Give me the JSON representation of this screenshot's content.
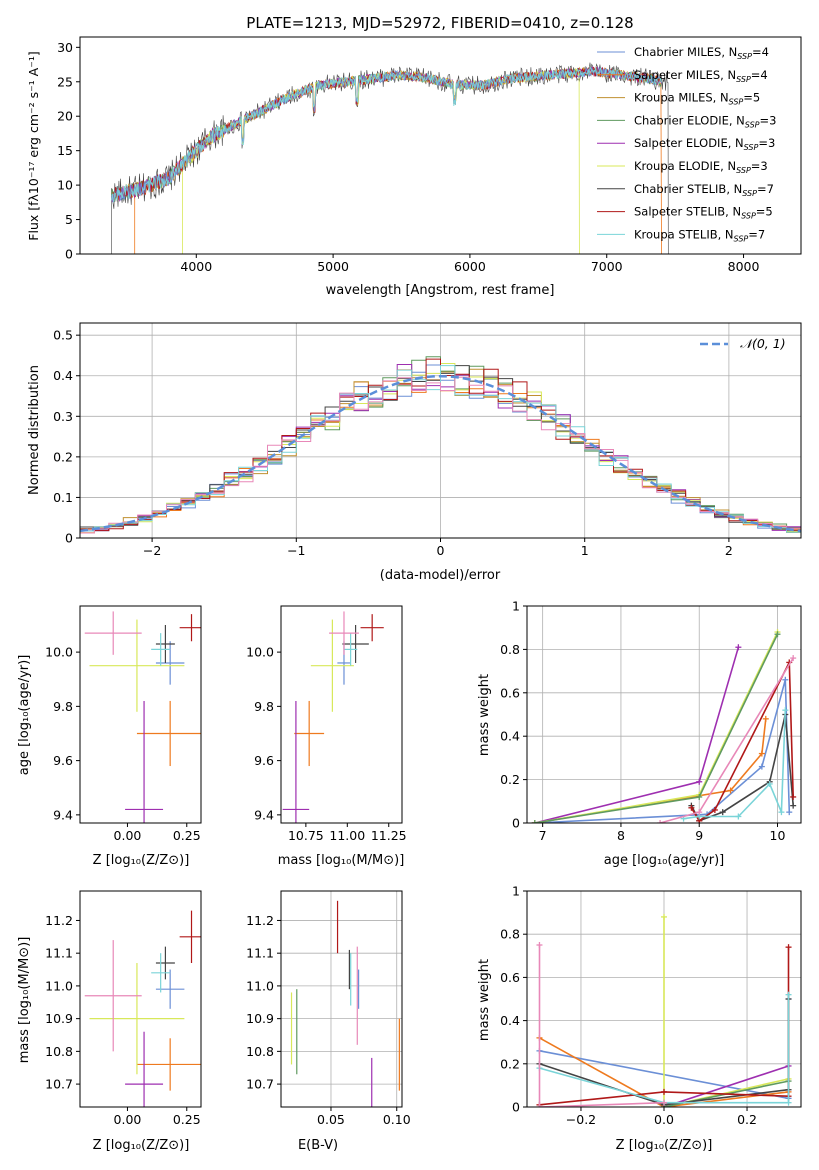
{
  "colors": {
    "Chabrier MILES": "#6b8fd6",
    "Salpeter MILES": "#ee7a1f",
    "Kroupa MILES": "#c09030",
    "Chabrier ELODIE": "#5f9a5f",
    "Salpeter ELODIE": "#9e2fb0",
    "Kroupa ELODIE": "#d8e85a",
    "Chabrier STELIB": "#444444",
    "Salpeter STELIB": "#b01818",
    "Kroupa STELIB": "#7ad4d8",
    "normal": "#5b8fd9",
    "pink": "#e888b8",
    "lime": "#9acd32"
  },
  "chart_data": [
    {
      "type": "line",
      "title": "PLATE=1213, MJD=52972, FIBERID=0410, z=0.128",
      "xlabel": "wavelength [Angstrom, rest frame]",
      "ylabel": "Flux [fλ10⁻¹⁷ erg cm⁻² s⁻¹ A⁻¹]",
      "xlim": [
        3150,
        8420
      ],
      "ylim": [
        0,
        31.5
      ],
      "xticks": [
        4000,
        5000,
        6000,
        7000,
        8000
      ],
      "yticks": [
        0,
        5,
        10,
        15,
        20,
        25,
        30
      ],
      "grid": false,
      "legend_position": "right",
      "legend": [
        "Chabrier MILES, N_SSP=4",
        "Salpeter MILES, N_SSP=4",
        "Kroupa MILES, N_SSP=5",
        "Chabrier ELODIE, N_SSP=3",
        "Salpeter ELODIE, N_SSP=3",
        "Kroupa ELODIE, N_SSP=3",
        "Chabrier STELIB, N_SSP=7",
        "Salpeter STELIB, N_SSP=5",
        "Kroupa STELIB, N_SSP=7"
      ],
      "legend_rendered": [
        {
          "name": "Chabrier MILES",
          "sub": "SSP",
          "n": "=4"
        },
        {
          "name": "Salpeter MILES",
          "sub": "SSP",
          "n": "=4"
        },
        {
          "name": "Kroupa MILES",
          "sub": "SSP",
          "n": "=5"
        },
        {
          "name": "Chabrier ELODIE",
          "sub": "SSP",
          "n": "=3"
        },
        {
          "name": "Salpeter ELODIE",
          "sub": "SSP",
          "n": "=3"
        },
        {
          "name": "Kroupa ELODIE",
          "sub": "SSP",
          "n": "=3"
        },
        {
          "name": "Chabrier STELIB",
          "sub": "SSP",
          "n": "=7"
        },
        {
          "name": "Salpeter STELIB",
          "sub": "SSP",
          "n": "=5"
        },
        {
          "name": "Kroupa STELIB",
          "sub": "SSP",
          "n": "=7"
        }
      ],
      "continuum": [
        [
          3380,
          8.5
        ],
        [
          3600,
          9.5
        ],
        [
          3800,
          11
        ],
        [
          3950,
          14
        ],
        [
          4100,
          17
        ],
        [
          4300,
          19
        ],
        [
          4500,
          21
        ],
        [
          4700,
          23
        ],
        [
          4900,
          24.5
        ],
        [
          5100,
          25
        ],
        [
          5300,
          25.5
        ],
        [
          5500,
          26
        ],
        [
          5700,
          25.5
        ],
        [
          5900,
          24.5
        ],
        [
          6100,
          24.5
        ],
        [
          6300,
          25.5
        ],
        [
          6600,
          26
        ],
        [
          6900,
          26.5
        ],
        [
          7100,
          26
        ],
        [
          7300,
          25.5
        ],
        [
          7400,
          25
        ]
      ],
      "model_ranges": {
        "Salpeter MILES": [
          3550,
          7400
        ],
        "Kroupa ELODIE": [
          3900,
          6800
        ],
        "Chabrier STELIB": [
          3380,
          7450
        ]
      }
    },
    {
      "type": "step",
      "xlabel": "(data-model)/error",
      "ylabel": "Normed distribution",
      "xlim": [
        -2.5,
        2.5
      ],
      "ylim": [
        0,
        0.53
      ],
      "xticks": [
        -2,
        -1,
        0,
        1,
        2
      ],
      "xtick_labels": [
        "−2",
        "−1",
        "0",
        "1",
        "2"
      ],
      "yticks": [
        0.0,
        0.1,
        0.2,
        0.3,
        0.4,
        0.5
      ],
      "grid": true,
      "legend_position": "top-right",
      "normal_label": "𝒩(0, 1)",
      "bin_width": 0.1
    },
    {
      "type": "errorbar",
      "xlabel": "Z [log₁₀(Z/Z⊙)]",
      "ylabel": "age  [log₁₀(age/yr)]",
      "xlim": [
        -0.2,
        0.31
      ],
      "ylim": [
        9.37,
        10.17
      ],
      "xticks": [
        0.0,
        0.25
      ],
      "xtick_labels": [
        "0.00",
        "0.25"
      ],
      "yticks": [
        9.4,
        9.6,
        9.8,
        10.0
      ],
      "ytick_labels": [
        "9.4",
        "9.6",
        "9.8",
        "10.0"
      ],
      "points": [
        {
          "model": "Chabrier MILES",
          "x": 0.18,
          "y": 9.96,
          "xerr": 0.06,
          "yerr": 0.08
        },
        {
          "model": "Salpeter MILES",
          "x": 0.18,
          "y": 9.7,
          "xerr": 0.14,
          "yerr": 0.12
        },
        {
          "model": "Salpeter ELODIE",
          "x": 0.07,
          "y": 9.42,
          "xerr": 0.08,
          "yerr": 0.4
        },
        {
          "model": "Kroupa ELODIE",
          "x": 0.04,
          "y": 9.95,
          "xerr": 0.2,
          "yerr": 0.17
        },
        {
          "model": "Chabrier STELIB",
          "x": 0.16,
          "y": 10.03,
          "xerr": 0.04,
          "yerr": 0.07
        },
        {
          "model": "Salpeter STELIB",
          "x": 0.27,
          "y": 10.09,
          "xerr": 0.05,
          "yerr": 0.05
        },
        {
          "model": "Kroupa STELIB",
          "x": 0.14,
          "y": 10.01,
          "xerr": 0.04,
          "yerr": 0.06
        },
        {
          "model": "pink",
          "x": -0.06,
          "y": 10.07,
          "xerr": 0.12,
          "yerr": 0.08
        }
      ]
    },
    {
      "type": "errorbar",
      "xlabel": "mass [log₁₀(M/M⊙)]",
      "xlim": [
        10.6,
        11.33
      ],
      "ylim": [
        9.37,
        10.17
      ],
      "xticks": [
        10.75,
        11.0,
        11.25
      ],
      "xtick_labels": [
        "10.75",
        "11.00",
        "11.25"
      ],
      "yticks": [
        9.4,
        9.6,
        9.8,
        10.0
      ],
      "ytick_labels": [
        "9.4",
        "9.6",
        "9.8",
        "10.0"
      ],
      "points": [
        {
          "model": "Chabrier MILES",
          "x": 10.98,
          "y": 9.96,
          "xerr": 0.04,
          "yerr": 0.08
        },
        {
          "model": "Salpeter MILES",
          "x": 10.77,
          "y": 9.7,
          "xerr": 0.09,
          "yerr": 0.12
        },
        {
          "model": "Salpeter ELODIE",
          "x": 10.69,
          "y": 9.42,
          "xerr": 0.08,
          "yerr": 0.4
        },
        {
          "model": "Kroupa ELODIE",
          "x": 10.91,
          "y": 9.95,
          "xerr": 0.13,
          "yerr": 0.17
        },
        {
          "model": "Chabrier STELIB",
          "x": 11.05,
          "y": 10.03,
          "xerr": 0.08,
          "yerr": 0.07
        },
        {
          "model": "Salpeter STELIB",
          "x": 11.15,
          "y": 10.09,
          "xerr": 0.07,
          "yerr": 0.05
        },
        {
          "model": "Kroupa STELIB",
          "x": 11.02,
          "y": 10.01,
          "xerr": 0.04,
          "yerr": 0.06
        },
        {
          "model": "pink",
          "x": 10.98,
          "y": 10.07,
          "xerr": 0.09,
          "yerr": 0.08
        }
      ]
    },
    {
      "type": "line",
      "xlabel": "age  [log₁₀(age/yr)]",
      "ylabel": "mass weight",
      "xlim": [
        6.8,
        10.3
      ],
      "ylim": [
        0.0,
        1.0
      ],
      "xticks": [
        7,
        8,
        9,
        10
      ],
      "yticks": [
        0.0,
        0.2,
        0.4,
        0.6,
        0.8,
        1.0
      ],
      "grid": true,
      "series": [
        {
          "model": "Chabrier MILES",
          "x": [
            6.9,
            9.1,
            9.8,
            10.1,
            10.15
          ],
          "y": [
            0.0,
            0.04,
            0.26,
            0.66,
            0.05
          ]
        },
        {
          "model": "Salpeter MILES",
          "x": [
            6.9,
            9.4,
            9.8,
            9.85
          ],
          "y": [
            0.0,
            0.15,
            0.32,
            0.48
          ]
        },
        {
          "model": "Salpeter ELODIE",
          "x": [
            6.9,
            9.0,
            9.5
          ],
          "y": [
            0.0,
            0.19,
            0.81
          ]
        },
        {
          "model": "Kroupa ELODIE",
          "x": [
            6.9,
            9.0,
            10.0
          ],
          "y": [
            0.0,
            0.13,
            0.88
          ]
        },
        {
          "model": "Chabrier ELODIE",
          "x": [
            6.9,
            9.0,
            10.0
          ],
          "y": [
            0.0,
            0.12,
            0.87
          ]
        },
        {
          "model": "Chabrier STELIB",
          "x": [
            8.9,
            9.0,
            9.3,
            9.9,
            10.1,
            10.2
          ],
          "y": [
            0.08,
            0.01,
            0.05,
            0.19,
            0.5,
            0.08
          ]
        },
        {
          "model": "Salpeter STELIB",
          "x": [
            8.9,
            9.0,
            9.2,
            10.15,
            10.2
          ],
          "y": [
            0.07,
            0.01,
            0.06,
            0.74,
            0.12
          ]
        },
        {
          "model": "Kroupa STELIB",
          "x": [
            8.8,
            9.0,
            9.5,
            9.9,
            10.05,
            10.1
          ],
          "y": [
            0.02,
            0.03,
            0.03,
            0.18,
            0.05,
            0.52
          ]
        },
        {
          "model": "pink",
          "x": [
            8.5,
            9.0,
            10.2
          ],
          "y": [
            0.0,
            0.05,
            0.76
          ]
        }
      ]
    },
    {
      "type": "errorbar",
      "xlabel": "Z [log₁₀(Z/Z⊙)]",
      "ylabel": "mass [log₁₀(M/M⊙)]",
      "xlim": [
        -0.2,
        0.31
      ],
      "ylim": [
        10.63,
        11.29
      ],
      "xticks": [
        0.0,
        0.25
      ],
      "xtick_labels": [
        "0.00",
        "0.25"
      ],
      "yticks": [
        10.7,
        10.8,
        10.9,
        11.0,
        11.1,
        11.2
      ],
      "ytick_labels": [
        "10.7",
        "10.8",
        "10.9",
        "11.0",
        "11.1",
        "11.2"
      ],
      "points": [
        {
          "model": "Chabrier MILES",
          "x": 0.18,
          "y": 10.99,
          "xerr": 0.06,
          "yerr": 0.06
        },
        {
          "model": "Salpeter MILES",
          "x": 0.18,
          "y": 10.76,
          "xerr": 0.14,
          "yerr": 0.08
        },
        {
          "model": "Salpeter ELODIE",
          "x": 0.07,
          "y": 10.7,
          "xerr": 0.08,
          "yerr": 0.16
        },
        {
          "model": "Kroupa ELODIE",
          "x": 0.04,
          "y": 10.9,
          "xerr": 0.2,
          "yerr": 0.17
        },
        {
          "model": "Chabrier STELIB",
          "x": 0.16,
          "y": 11.07,
          "xerr": 0.04,
          "yerr": 0.05
        },
        {
          "model": "Salpeter STELIB",
          "x": 0.27,
          "y": 11.15,
          "xerr": 0.05,
          "yerr": 0.08
        },
        {
          "model": "Kroupa STELIB",
          "x": 0.14,
          "y": 11.04,
          "xerr": 0.04,
          "yerr": 0.06
        },
        {
          "model": "pink",
          "x": -0.06,
          "y": 10.97,
          "xerr": 0.12,
          "yerr": 0.17
        }
      ]
    },
    {
      "type": "errorbar",
      "xlabel": "E(B-V)",
      "xlim": [
        0.012,
        0.104
      ],
      "ylim": [
        10.63,
        11.29
      ],
      "xticks": [
        0.05,
        0.1
      ],
      "xtick_labels": [
        "0.05",
        "0.10"
      ],
      "yticks": [
        10.7,
        10.8,
        10.9,
        11.0,
        11.1,
        11.2
      ],
      "ytick_labels": [
        "10.7",
        "10.8",
        "10.9",
        "11.0",
        "11.1",
        "11.2"
      ],
      "points": [
        {
          "model": "Chabrier MILES",
          "x": 0.071,
          "y": 10.99,
          "xerr": 0.0,
          "yerr": 0.06
        },
        {
          "model": "Salpeter MILES",
          "x": 0.102,
          "y": 10.79,
          "xerr": 0.0,
          "yerr": 0.11
        },
        {
          "model": "Salpeter ELODIE",
          "x": 0.081,
          "y": 10.7,
          "xerr": 0.0,
          "yerr": 0.08
        },
        {
          "model": "Kroupa ELODIE",
          "x": 0.02,
          "y": 10.87,
          "xerr": 0.0,
          "yerr": 0.11
        },
        {
          "model": "Chabrier ELODIE",
          "x": 0.024,
          "y": 10.86,
          "xerr": 0.0,
          "yerr": 0.13
        },
        {
          "model": "Chabrier STELIB",
          "x": 0.064,
          "y": 11.05,
          "xerr": 0.0,
          "yerr": 0.06
        },
        {
          "model": "Salpeter STELIB",
          "x": 0.055,
          "y": 11.18,
          "xerr": 0.0,
          "yerr": 0.08
        },
        {
          "model": "Kroupa STELIB",
          "x": 0.065,
          "y": 11.02,
          "xerr": 0.0,
          "yerr": 0.08
        },
        {
          "model": "pink",
          "x": 0.07,
          "y": 10.97,
          "xerr": 0.0,
          "yerr": 0.15
        }
      ]
    },
    {
      "type": "line",
      "xlabel": "Z [log₁₀(Z/Z⊙)]",
      "ylabel": "mass weight",
      "xlim": [
        -0.33,
        0.33
      ],
      "ylim": [
        0.0,
        1.0
      ],
      "xticks": [
        -0.2,
        0.0,
        0.2
      ],
      "xtick_labels": [
        "−0.2",
        "0.0",
        "0.2"
      ],
      "yticks": [
        0.0,
        0.2,
        0.4,
        0.6,
        0.8,
        1.0
      ],
      "grid": true,
      "series": [
        {
          "model": "Chabrier MILES",
          "x": [
            -0.3,
            0.3,
            0.3
          ],
          "y": [
            0.26,
            0.04,
            0.5
          ]
        },
        {
          "model": "Salpeter MILES",
          "x": [
            -0.3,
            0.0,
            0.3
          ],
          "y": [
            0.32,
            0.0,
            0.07
          ]
        },
        {
          "model": "Salpeter ELODIE",
          "x": [
            0.0,
            0.3
          ],
          "y": [
            0.0,
            0.19
          ]
        },
        {
          "model": "Kroupa ELODIE",
          "x": [
            0.0,
            0.0,
            0.3
          ],
          "y": [
            0.88,
            0.0,
            0.13
          ]
        },
        {
          "model": "Chabrier ELODIE",
          "x": [
            0.0,
            0.3
          ],
          "y": [
            0.0,
            0.12
          ]
        },
        {
          "model": "Chabrier STELIB",
          "x": [
            -0.3,
            0.0,
            0.3,
            0.3
          ],
          "y": [
            0.2,
            0.01,
            0.08,
            0.5
          ]
        },
        {
          "model": "Salpeter STELIB",
          "x": [
            -0.3,
            0.0,
            0.3,
            0.3
          ],
          "y": [
            0.01,
            0.07,
            0.05,
            0.74
          ]
        },
        {
          "model": "Kroupa STELIB",
          "x": [
            -0.3,
            0.0,
            0.3,
            0.3
          ],
          "y": [
            0.18,
            0.02,
            0.02,
            0.52
          ]
        },
        {
          "model": "pink",
          "x": [
            -0.3,
            -0.3,
            0.0
          ],
          "y": [
            0.75,
            0.0,
            0.02
          ]
        }
      ]
    }
  ]
}
